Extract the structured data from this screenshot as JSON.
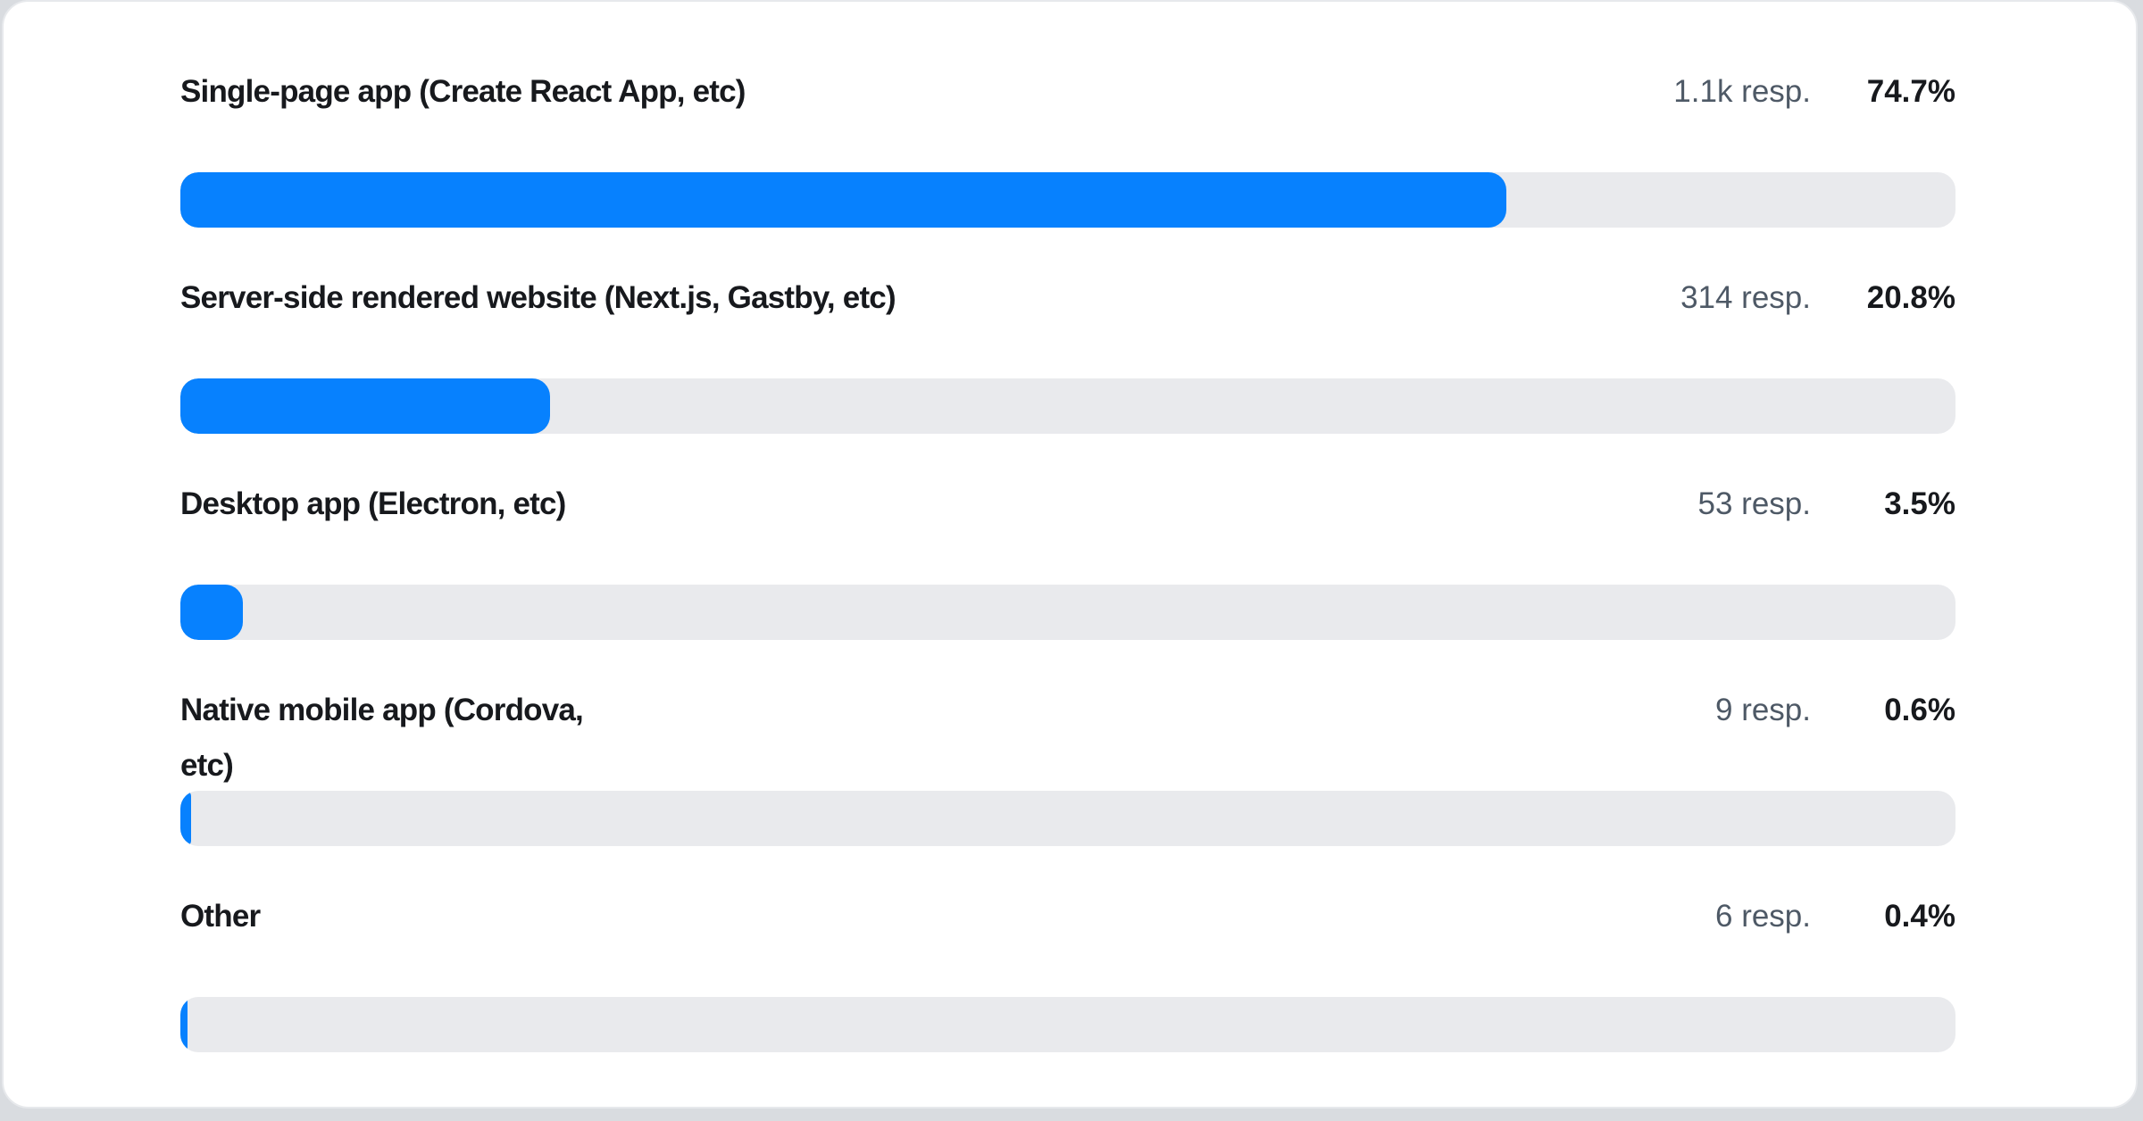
{
  "chart_data": {
    "type": "bar",
    "orientation": "horizontal",
    "title": "",
    "categories": [
      "Single-page app (Create React App, etc)",
      "Server-side rendered website (Next.js, Gastby, etc)",
      "Desktop app (Electron, etc)",
      "Native mobile app (Cordova, etc)",
      "Other"
    ],
    "values_percent": [
      74.7,
      20.8,
      3.5,
      0.6,
      0.4
    ],
    "responses": [
      1100,
      314,
      53,
      9,
      6
    ],
    "responses_display": [
      "1.1k",
      "314",
      "53",
      "9",
      "6"
    ],
    "xlim": [
      0,
      100
    ],
    "grid": false,
    "legend": false
  },
  "rows": [
    {
      "label": "Single-page app (Create React App, etc)",
      "responses": "1.1k resp.",
      "percent": "74.7%",
      "value": 74.7
    },
    {
      "label": "Server-side rendered website (Next.js, Gastby, etc)",
      "responses": "314 resp.",
      "percent": "20.8%",
      "value": 20.8
    },
    {
      "label": "Desktop app (Electron, etc)",
      "responses": "53 resp.",
      "percent": "3.5%",
      "value": 3.5
    },
    {
      "label": "Native mobile app (Cordova,\netc)",
      "responses": "9 resp.",
      "percent": "0.6%",
      "value": 0.6
    },
    {
      "label": "Other",
      "responses": "6 resp.",
      "percent": "0.4%",
      "value": 0.4
    }
  ],
  "colors": {
    "bar_fill": "#0781fe",
    "bar_track": "#e9eaed",
    "label_text": "#17191d",
    "responses_text": "#4e5966",
    "percent_text": "#17191d",
    "card_background": "#ffffff",
    "card_border": "#e7e9ec",
    "page_background": "#d9dce0"
  }
}
